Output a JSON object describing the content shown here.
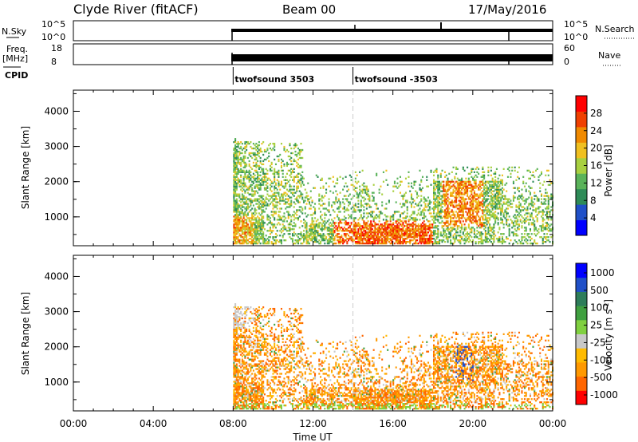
{
  "header": {
    "title": "Clyde River (fitACF)",
    "beam": "Beam 00",
    "date": "17/May/2016"
  },
  "nsky_panel": {
    "left_label": "N.Sky",
    "right_label": "N.Search",
    "ticks_left": [
      "10^5",
      "10^0"
    ],
    "ticks_right": [
      "10^5",
      "10^0"
    ]
  },
  "freq_panel": {
    "left_label": "Freq.",
    "left_unit": "[MHz]",
    "right_label": "Nave",
    "ticks_left": [
      "18",
      "8"
    ],
    "ticks_right": [
      "60",
      "0"
    ]
  },
  "cpid": {
    "label": "CPID",
    "segments": [
      {
        "name": "twofsound 3503",
        "start_hour": 8.0
      },
      {
        "name": "twofsound -3503",
        "start_hour": 14.0
      }
    ]
  },
  "colors": {
    "power_scale": [
      "#0000ff",
      "#2050c8",
      "#2e8b57",
      "#5ab35a",
      "#a8d040",
      "#f0c020",
      "#f08a00",
      "#f04000",
      "#ff0000"
    ],
    "velocity_scale": [
      "#ff0000",
      "#ff6600",
      "#ff9900",
      "#ffbb00",
      "#c8c8c8",
      "#80d040",
      "#40a040",
      "#2e7d5a",
      "#2050c8",
      "#0000ff"
    ]
  },
  "chart_data": [
    {
      "type": "heatmap",
      "title": "Power",
      "ylabel": "Slant Range [km]",
      "xlabel": "",
      "xlim": [
        0,
        24
      ],
      "ylim": [
        180,
        4600
      ],
      "yticks": [
        "1000",
        "2000",
        "3000",
        "4000"
      ],
      "colorbar": {
        "label": "Power [dB]",
        "ticks": [
          "4",
          "8",
          "12",
          "16",
          "20",
          "24",
          "28"
        ],
        "range": [
          0,
          32
        ]
      },
      "data_start_hour": 8.0
    },
    {
      "type": "heatmap",
      "title": "Velocity",
      "ylabel": "Slant Range [km]",
      "xlabel": "Time UT",
      "xlim": [
        0,
        24
      ],
      "ylim": [
        180,
        4600
      ],
      "yticks": [
        "1000",
        "2000",
        "3000",
        "4000"
      ],
      "xticks": [
        "00:00",
        "04:00",
        "08:00",
        "12:00",
        "16:00",
        "20:00",
        "00:00"
      ],
      "colorbar": {
        "label": "Velocity",
        "unit_prefix": "[m s",
        "unit_exp": "-1",
        "unit_suffix": "]",
        "ticks": [
          "1000",
          "500",
          "100",
          "25",
          "-25",
          "-100",
          "-500",
          "-1000"
        ]
      },
      "data_start_hour": 8.0
    }
  ]
}
